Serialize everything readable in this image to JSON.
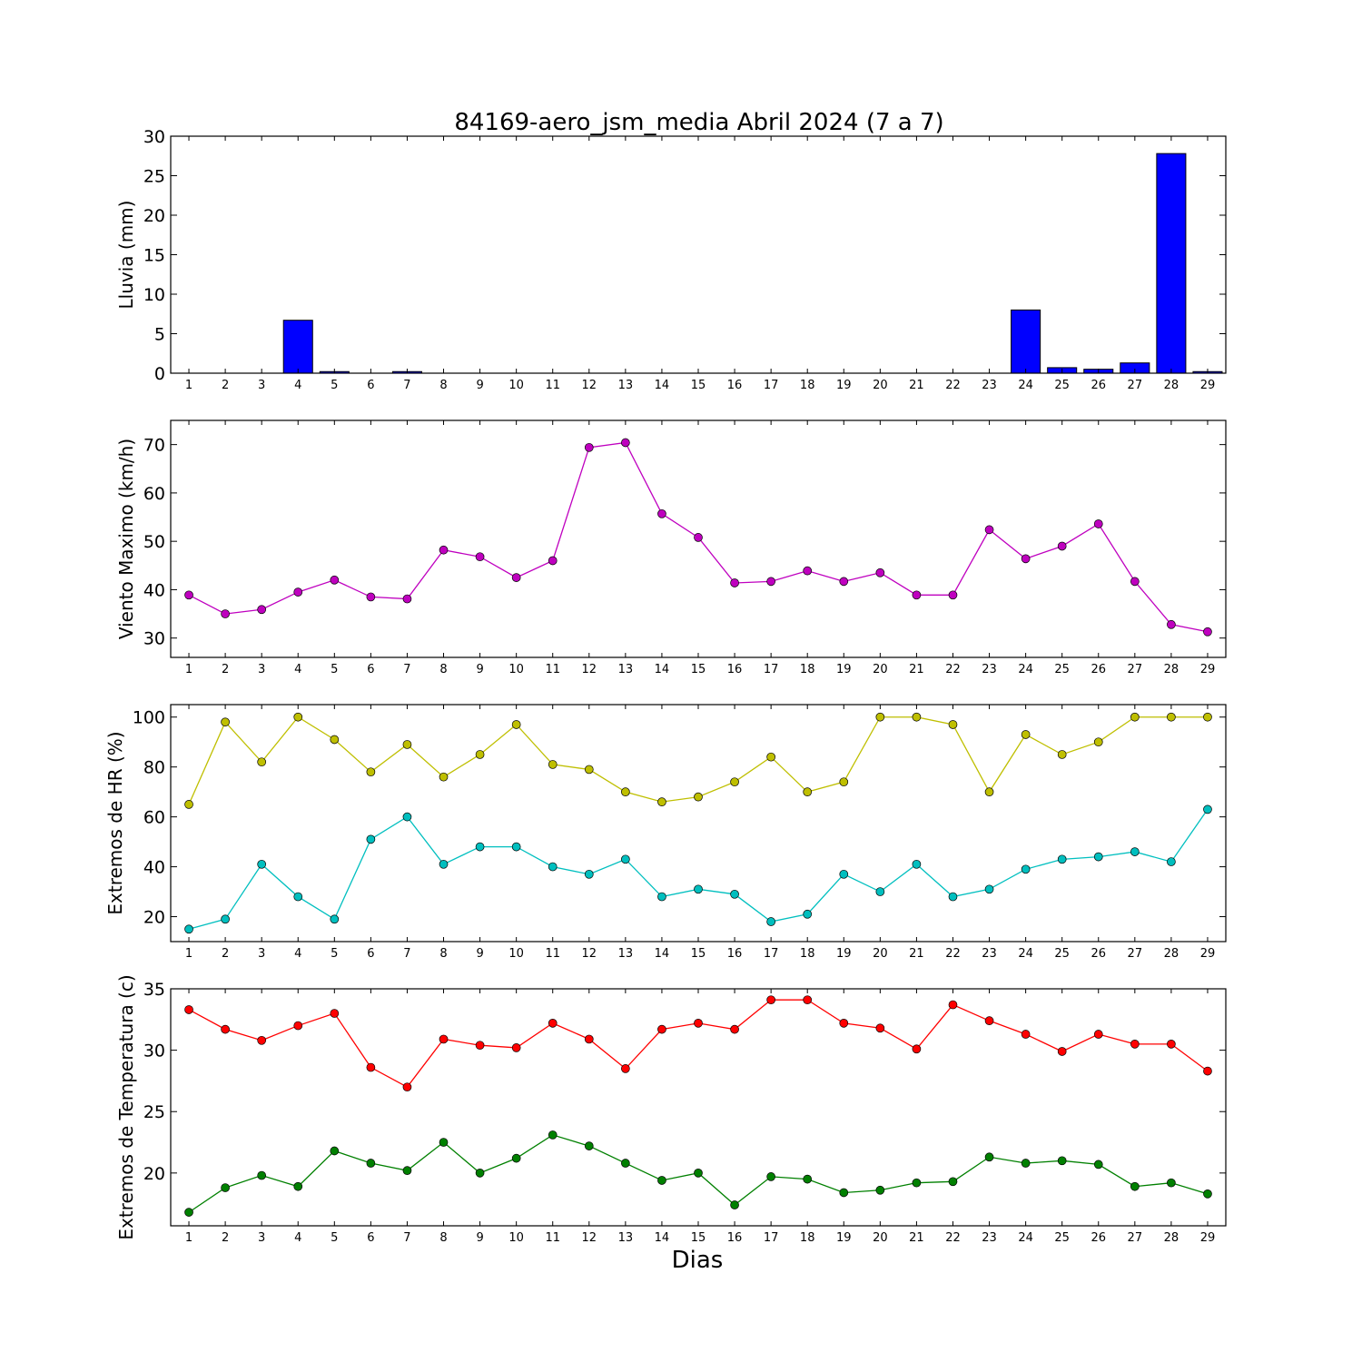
{
  "figure": {
    "title": "84169-aero_jsm_media Abril 2024  (7 a 7)",
    "xlabel": "Dias"
  },
  "chart_data": [
    {
      "type": "bar",
      "ylabel": "Lluvia (mm)",
      "ylim": [
        0,
        30
      ],
      "yticks": [
        0,
        5,
        10,
        15,
        20,
        25,
        30
      ],
      "categories": [
        1,
        2,
        3,
        4,
        5,
        6,
        7,
        8,
        9,
        10,
        11,
        12,
        13,
        14,
        15,
        16,
        17,
        18,
        19,
        20,
        21,
        22,
        23,
        24,
        25,
        26,
        27,
        28,
        29
      ],
      "series": [
        {
          "color": "#0000ff",
          "values": [
            0,
            0,
            0,
            6.7,
            0.2,
            0,
            0.2,
            0,
            0,
            0,
            0,
            0,
            0,
            0,
            0,
            0,
            0,
            0,
            0,
            0,
            0,
            0,
            0,
            8.0,
            0.7,
            0.5,
            1.3,
            27.8,
            0.2
          ]
        }
      ]
    },
    {
      "type": "line",
      "ylabel": "Viento Maximo (km/h)",
      "ylim": [
        26,
        75
      ],
      "yticks": [
        30,
        40,
        50,
        60,
        70
      ],
      "categories": [
        1,
        2,
        3,
        4,
        5,
        6,
        7,
        8,
        9,
        10,
        11,
        12,
        13,
        14,
        15,
        16,
        17,
        18,
        19,
        20,
        21,
        22,
        23,
        24,
        25,
        26,
        27,
        28,
        29
      ],
      "series": [
        {
          "color": "#bf00bf",
          "values": [
            38.9,
            35.0,
            35.9,
            39.5,
            42.0,
            38.5,
            38.1,
            48.2,
            46.8,
            42.5,
            46.0,
            69.4,
            70.4,
            55.7,
            50.8,
            41.4,
            41.7,
            43.9,
            41.7,
            43.5,
            38.9,
            38.9,
            52.4,
            46.4,
            49.0,
            53.6,
            41.7,
            32.8,
            31.3
          ]
        }
      ]
    },
    {
      "type": "line",
      "ylabel": "Extremos de HR (%)",
      "ylim": [
        10,
        105
      ],
      "yticks": [
        20,
        40,
        60,
        80,
        100
      ],
      "categories": [
        1,
        2,
        3,
        4,
        5,
        6,
        7,
        8,
        9,
        10,
        11,
        12,
        13,
        14,
        15,
        16,
        17,
        18,
        19,
        20,
        21,
        22,
        23,
        24,
        25,
        26,
        27,
        28,
        29
      ],
      "series": [
        {
          "color": "#bfbf00",
          "values": [
            65,
            98,
            82,
            100,
            91,
            78,
            89,
            76,
            85,
            97,
            81,
            79,
            70,
            66,
            68,
            74,
            84,
            70,
            74,
            100,
            100,
            97,
            70,
            93,
            85,
            90,
            100,
            100,
            100
          ]
        },
        {
          "color": "#00bfbf",
          "values": [
            15,
            19,
            41,
            28,
            19,
            51,
            60,
            41,
            48,
            48,
            40,
            37,
            43,
            28,
            31,
            29,
            18,
            21,
            37,
            30,
            41,
            28,
            31,
            39,
            43,
            44,
            46,
            42,
            63
          ]
        }
      ]
    },
    {
      "type": "line",
      "ylabel": "Extremos de Temperatura (c)",
      "ylim": [
        15.7,
        35
      ],
      "yticks": [
        20,
        25,
        30,
        35
      ],
      "categories": [
        1,
        2,
        3,
        4,
        5,
        6,
        7,
        8,
        9,
        10,
        11,
        12,
        13,
        14,
        15,
        16,
        17,
        18,
        19,
        20,
        21,
        22,
        23,
        24,
        25,
        26,
        27,
        28,
        29
      ],
      "series": [
        {
          "color": "#ff0000",
          "values": [
            33.3,
            31.7,
            30.8,
            32.0,
            33.0,
            28.6,
            27.0,
            30.9,
            30.4,
            30.2,
            32.2,
            30.9,
            28.5,
            31.7,
            32.2,
            31.7,
            34.1,
            34.1,
            32.2,
            31.8,
            30.1,
            33.7,
            32.4,
            31.3,
            29.9,
            31.3,
            30.5,
            30.5,
            28.3
          ]
        },
        {
          "color": "#008000",
          "values": [
            16.8,
            18.8,
            19.8,
            18.9,
            21.8,
            20.8,
            20.2,
            22.5,
            20.0,
            21.2,
            23.1,
            22.2,
            20.8,
            19.4,
            20.0,
            17.4,
            19.7,
            19.5,
            18.4,
            18.6,
            19.2,
            19.3,
            21.3,
            20.8,
            21.0,
            20.7,
            18.9,
            19.2,
            18.3
          ]
        }
      ]
    }
  ]
}
